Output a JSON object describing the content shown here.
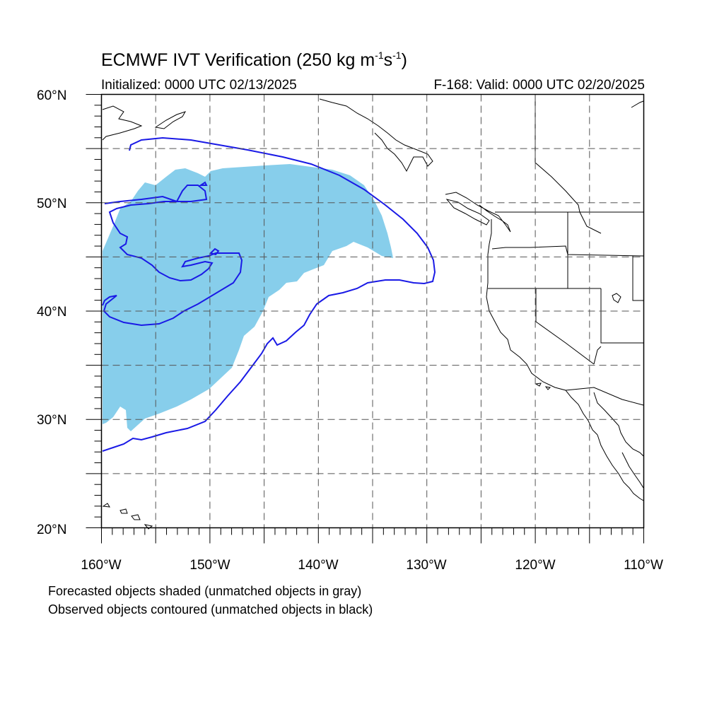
{
  "title": {
    "main": "ECMWF IVT Verification (250 kg m",
    "exp1": "-1",
    "mid": "s",
    "exp2": "-1",
    "close": ")"
  },
  "subtitle": {
    "initialized": "Initialized: 0000 UTC 02/13/2025",
    "valid": "F-168: Valid: 0000 UTC 02/20/2025"
  },
  "axes": {
    "lat_range": [
      20,
      60
    ],
    "lon_range": [
      -160,
      -110
    ],
    "lat_labels": [
      "60°N",
      "50°N",
      "40°N",
      "30°N",
      "20°N"
    ],
    "lon_labels": [
      "160°W",
      "150°W",
      "140°W",
      "130°W",
      "120°W",
      "110°W"
    ],
    "grid": "dashed, every 5 degrees"
  },
  "legend": {
    "line1": "Forecasted objects shaded (unmatched objects in gray)",
    "line2": "Observed objects contoured (unmatched objects in black)"
  },
  "colors": {
    "forecast_fill": "#87ceeb",
    "observed_contour": "#1a1ae6",
    "coastline": "#000000",
    "grid": "#555555"
  }
}
